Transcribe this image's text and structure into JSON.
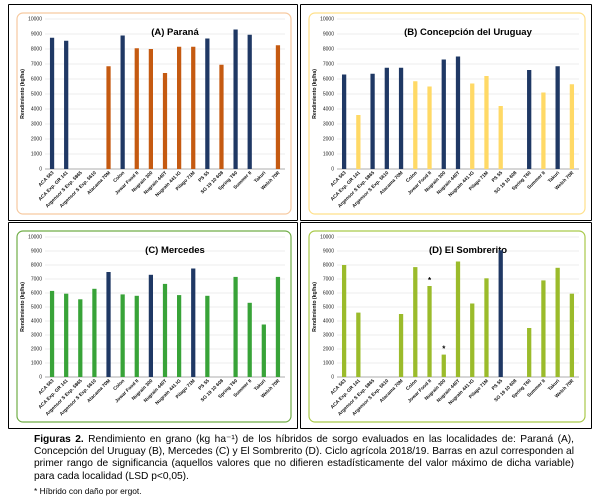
{
  "chart_data": [
    {
      "type": "bar",
      "title": "(A) Paraná",
      "ylabel": "Rendimiento (kg/ha)",
      "ylim": [
        0,
        10000
      ],
      "yticks": [
        0,
        1000,
        2000,
        3000,
        4000,
        5000,
        6000,
        7000,
        8000,
        9000,
        10000
      ],
      "frame_color": "#f6c9a0",
      "top_group_color": "#1f3864",
      "other_color": "#c55a11",
      "categories": [
        "ACA 563",
        "ACA Exp. GR 141",
        "Argensor S Exp. 5865",
        "Argensor S Exp. 5610",
        "Atacama 70M",
        "Colon",
        "Jowar Food II",
        "Nugrain 300",
        "Nugrain 440T",
        "Nugrain 441 IG",
        "Pilago 71M",
        "PS 55",
        "SG 19 10 608",
        "Spring T60",
        "Summer II",
        "Takuri",
        "Welch 70R"
      ],
      "values": [
        8750,
        8550,
        null,
        null,
        6850,
        8900,
        8050,
        8000,
        6400,
        8150,
        8150,
        8700,
        6950,
        9300,
        8950,
        null,
        8250
      ],
      "top_group": [
        true,
        true,
        false,
        false,
        false,
        true,
        false,
        false,
        false,
        false,
        false,
        true,
        false,
        true,
        true,
        false,
        false
      ],
      "annotations": []
    },
    {
      "type": "bar",
      "title": "(B) Concepción del Uruguay",
      "ylabel": "Rendimiento (kg/ha)",
      "ylim": [
        0,
        10000
      ],
      "yticks": [
        0,
        1000,
        2000,
        3000,
        4000,
        5000,
        6000,
        7000,
        8000,
        9000,
        10000
      ],
      "frame_color": "#ffe08a",
      "top_group_color": "#1f3864",
      "other_color": "#ffd966",
      "categories": [
        "ACA 563",
        "ACA Exp. GR 141",
        "Argensor S Exp. 5865",
        "Argensor S Exp. 5610",
        "Atacama 70M",
        "Colon",
        "Jowar Food II",
        "Nugrain 300",
        "Nugrain 440T",
        "Nugrain 441 IG",
        "Pilago 71M",
        "PS 55",
        "SG 19 10 608",
        "Spring T60",
        "Summer II",
        "Takuri",
        "Welch 70R"
      ],
      "values": [
        6300,
        3600,
        6350,
        6750,
        6750,
        5850,
        5500,
        7300,
        7500,
        5700,
        6200,
        4200,
        null,
        6600,
        5100,
        6850,
        5650
      ],
      "top_group": [
        true,
        false,
        true,
        true,
        true,
        false,
        false,
        true,
        true,
        false,
        false,
        false,
        false,
        true,
        false,
        true,
        false
      ],
      "annotations": []
    },
    {
      "type": "bar",
      "title": "(C) Mercedes",
      "ylabel": "Rendimiento (kg/ha)",
      "ylim": [
        0,
        10000
      ],
      "yticks": [
        0,
        1000,
        2000,
        3000,
        4000,
        5000,
        6000,
        7000,
        8000,
        9000,
        10000
      ],
      "frame_color": "#70ad47",
      "top_group_color": "#1f3864",
      "other_color": "#38a338",
      "categories": [
        "ACA 563",
        "ACA Exp. GR 141",
        "Argensor S Exp. 5865",
        "Argensor S Exp. 5610",
        "Atacama 70M",
        "Colon",
        "Jowar Food II",
        "Nugrain 300",
        "Nugrain 440T",
        "Nugrain 441 IG",
        "Pilago 71M",
        "PS 55",
        "SG 19 10 608",
        "Spring T60",
        "Summer II",
        "Takuri",
        "Welch 70R"
      ],
      "values": [
        6150,
        5950,
        5550,
        6300,
        7500,
        5900,
        5800,
        7300,
        6650,
        5850,
        7750,
        5800,
        null,
        7150,
        5300,
        3750,
        7150
      ],
      "top_group": [
        false,
        false,
        false,
        false,
        true,
        false,
        false,
        true,
        false,
        false,
        true,
        false,
        false,
        false,
        false,
        false,
        false
      ],
      "annotations": []
    },
    {
      "type": "bar",
      "title": "(D) El Sombrerito",
      "ylabel": "Rendimiento (kg/ha)",
      "ylim": [
        0,
        10000
      ],
      "yticks": [
        0,
        1000,
        2000,
        3000,
        4000,
        5000,
        6000,
        7000,
        8000,
        9000,
        10000
      ],
      "frame_color": "#a9c94a",
      "top_group_color": "#1f3864",
      "other_color": "#9bbb2b",
      "categories": [
        "ACA 563",
        "ACA Exp. GR 141",
        "Argensor S Exp. 5865",
        "Argensor S Exp. 5610",
        "Atacama 70M",
        "Colon",
        "Jowar Food II",
        "Nugrain 300",
        "Nugrain 440T",
        "Nugrain 441 IG",
        "Pilago 71M",
        "PS 55",
        "SG 19 10 608",
        "Spring T60",
        "Summer II",
        "Takuri",
        "Welch 70R"
      ],
      "values": [
        8000,
        4600,
        null,
        null,
        4500,
        7850,
        6500,
        1600,
        8250,
        5250,
        7050,
        9050,
        null,
        3500,
        6900,
        7800,
        5950
      ],
      "top_group": [
        false,
        false,
        false,
        false,
        false,
        false,
        false,
        false,
        false,
        false,
        false,
        true,
        false,
        false,
        false,
        false,
        false
      ],
      "annotations": [
        {
          "category": "Jowar Food II",
          "label": "*"
        },
        {
          "category": "Nugrain 300",
          "label": "*"
        }
      ]
    }
  ],
  "caption": {
    "lead": "Figuras 2.",
    "text": " Rendimiento en grano (kg ha⁻¹) de los híbridos de sorgo evaluados en las localidades de: Paraná (A), Concepción del Uruguay (B), Mercedes (C) y El Sombrerito (D). Ciclo agrícola 2018/19. Barras en azul corresponden al primer rango de significancia (aquellos valores que no difieren estadísticamente del valor máximo de dicha variable) para cada localidad (LSD p<0,05)."
  },
  "footnote": "* Híbrido con daño por ergot."
}
